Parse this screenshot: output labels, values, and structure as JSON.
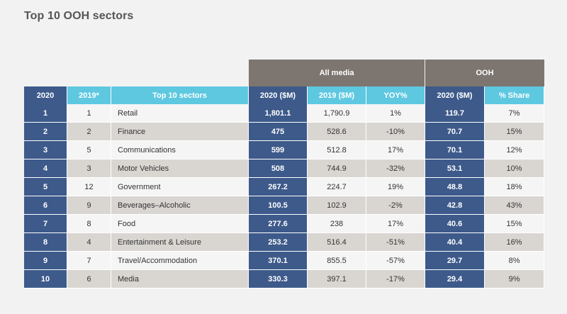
{
  "title": "Top 10 OOH sectors",
  "groups": {
    "all_media": "All media",
    "ooh": "OOH"
  },
  "headers": [
    "2020",
    "2019*",
    "Top 10 sectors",
    "2020 ($M)",
    "2019 ($M)",
    "YOY%",
    "2020 ($M)",
    "% Share"
  ],
  "rows": [
    [
      "1",
      "1",
      "Retail",
      "1,801.1",
      "1,790.9",
      "1%",
      "119.7",
      "7%"
    ],
    [
      "2",
      "2",
      "Finance",
      "475",
      "528.6",
      "-10%",
      "70.7",
      "15%"
    ],
    [
      "3",
      "5",
      "Communications",
      "599",
      "512.8",
      "17%",
      "70.1",
      "12%"
    ],
    [
      "4",
      "3",
      "Motor Vehicles",
      "508",
      "744.9",
      "-32%",
      "53.1",
      "10%"
    ],
    [
      "5",
      "12",
      "Government",
      "267.2",
      "224.7",
      "19%",
      "48.8",
      "18%"
    ],
    [
      "6",
      "9",
      "Beverages–Alcoholic",
      "100.5",
      "102.9",
      "-2%",
      "42.8",
      "43%"
    ],
    [
      "7",
      "8",
      "Food",
      "277.6",
      "238",
      "17%",
      "40.6",
      "15%"
    ],
    [
      "8",
      "4",
      "Entertainment & Leisure",
      "253.2",
      "516.4",
      "-51%",
      "40.4",
      "16%"
    ],
    [
      "9",
      "7",
      "Travel/Accommodation",
      "370.1",
      "855.5",
      "-57%",
      "29.7",
      "8%"
    ],
    [
      "10",
      "6",
      "Media",
      "330.3",
      "397.1",
      "-17%",
      "29.4",
      "9%"
    ]
  ]
}
